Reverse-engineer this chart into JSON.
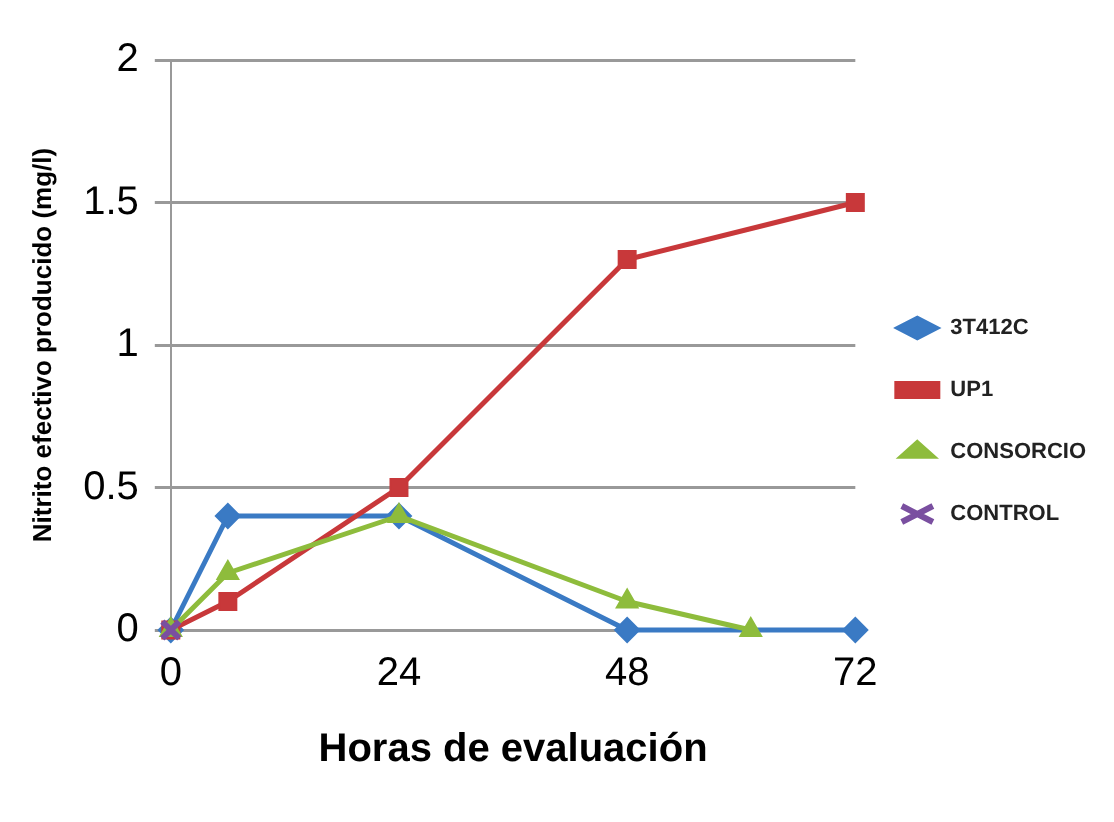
{
  "chart_data": {
    "type": "line",
    "xlabel": "Horas de evaluación",
    "ylabel": "Nitrito efectivo producido (mg/l)",
    "x": [
      0,
      6,
      24,
      48,
      72
    ],
    "xlim": [
      0,
      72
    ],
    "xticks": [
      0,
      24,
      48,
      72
    ],
    "ylim": [
      0,
      2
    ],
    "yticks": [
      0,
      0.5,
      1,
      1.5,
      2
    ],
    "grid": "y",
    "legend": "right",
    "series": [
      {
        "name": "3T412C",
        "color": "#3a7ac4",
        "marker": "diamond",
        "values": [
          0,
          0.4,
          0.4,
          0,
          0
        ]
      },
      {
        "name": "UP1",
        "color": "#c8383a",
        "marker": "square",
        "values": [
          0,
          0.1,
          0.5,
          1.3,
          1.5
        ]
      },
      {
        "name": "CONSORCIO",
        "color": "#8ebc3c",
        "marker": "triangle",
        "x": [
          0,
          6,
          24,
          48,
          61
        ],
        "values": [
          0,
          0.2,
          0.4,
          0.1,
          0
        ]
      },
      {
        "name": "CONTROL",
        "color": "#7a4fa0",
        "marker": "cross",
        "x": [
          0
        ],
        "values": [
          0
        ]
      }
    ]
  }
}
